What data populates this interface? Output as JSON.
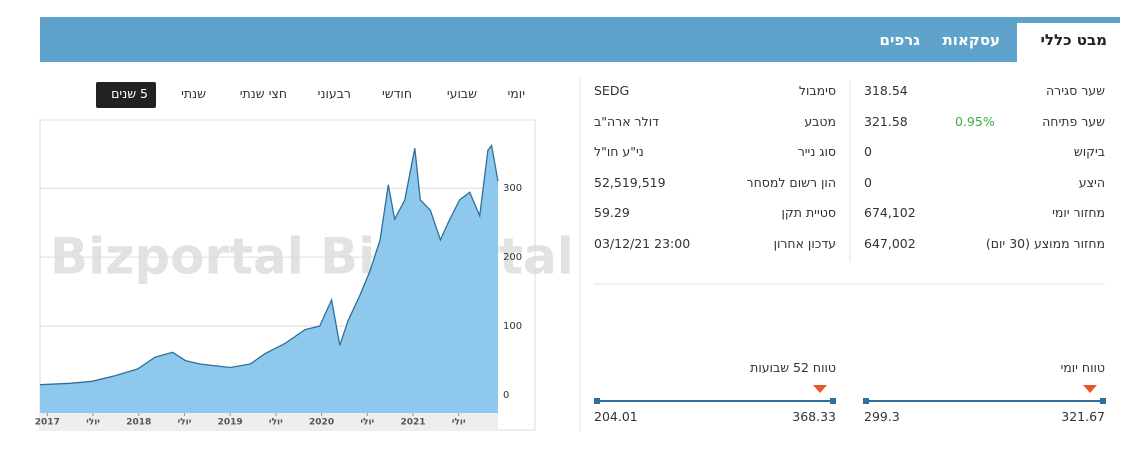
{
  "tabs": [
    "מבט כללי",
    "עסקאות",
    "גרפים"
  ],
  "periods": [
    "יומי",
    "שבועי",
    "חודשי",
    "רבעוני",
    "חצי שנתי",
    "שנתי",
    "5 שנים"
  ],
  "chart_data": {
    "type": "area",
    "watermark": "Bizportal",
    "x": [
      2016.92,
      2017.25,
      2017.49,
      2017.74,
      2017.99,
      2018.18,
      2018.37,
      2018.51,
      2018.67,
      2019.0,
      2019.22,
      2019.38,
      2019.6,
      2019.82,
      2019.98,
      2020.11,
      2020.2,
      2020.29,
      2020.42,
      2020.53,
      2020.64,
      2020.73,
      2020.8,
      2020.91,
      2021.02,
      2021.08,
      2021.19,
      2021.3,
      2021.4,
      2021.51,
      2021.62,
      2021.73,
      2021.82,
      2021.86,
      2021.93
    ],
    "values": [
      15,
      17,
      20,
      28,
      38,
      55,
      62,
      50,
      45,
      40,
      45,
      60,
      75,
      95,
      100,
      138,
      72,
      108,
      145,
      180,
      225,
      305,
      255,
      283,
      358,
      283,
      268,
      225,
      254,
      283,
      294,
      260,
      355,
      362,
      310
    ],
    "color": "#8ec8ec",
    "line_color": "#2f6f9a",
    "xlim": [
      2016.92,
      2021.93
    ],
    "xticks": [
      2017,
      {
        "value": 2017.5,
        "label": "יולי"
      },
      2018,
      {
        "value": 2018.5,
        "label": "יולי"
      },
      2019,
      {
        "value": 2019.5,
        "label": "יולי"
      },
      2020,
      {
        "value": 2020.5,
        "label": "יולי"
      },
      2021,
      {
        "value": 2021.5,
        "label": "יולי"
      }
    ],
    "ylim": [
      -26,
      396
    ],
    "yticks": [
      0,
      100,
      200,
      300
    ],
    "grid": true
  },
  "info": {
    "right": [
      {
        "label": "שער סגירה",
        "value": "318.54"
      },
      {
        "label": "שער פתיחה",
        "value": "321.58"
      },
      {
        "label": "ביקוש",
        "value": "0"
      },
      {
        "label": "היצע",
        "value": "0"
      },
      {
        "label": "מחזור יומי",
        "value": "674,102"
      },
      {
        "label": "מחזור ממוצע (30 יום)",
        "value": "647,002"
      }
    ],
    "change": "0.95%",
    "left": [
      {
        "label": "סימבול",
        "value": "SEDG"
      },
      {
        "label": "מטבע",
        "value": "דולר ארה\"ב"
      },
      {
        "label": "סוג נייר",
        "value": "ני\"ע חו\"ל"
      },
      {
        "label": "הון רשום למסחר",
        "value": "52,519,519"
      },
      {
        "label": "סטיית תקן",
        "value": "59.29"
      },
      {
        "label": "עדכון אחרון",
        "value": "23:00 03/12/21"
      }
    ]
  },
  "ranges": [
    {
      "title": "טווח יומי",
      "low": "299.3",
      "high": "321.67"
    },
    {
      "title": "טווח 52 שבועות",
      "low": "204.01",
      "high": "368.33"
    }
  ]
}
